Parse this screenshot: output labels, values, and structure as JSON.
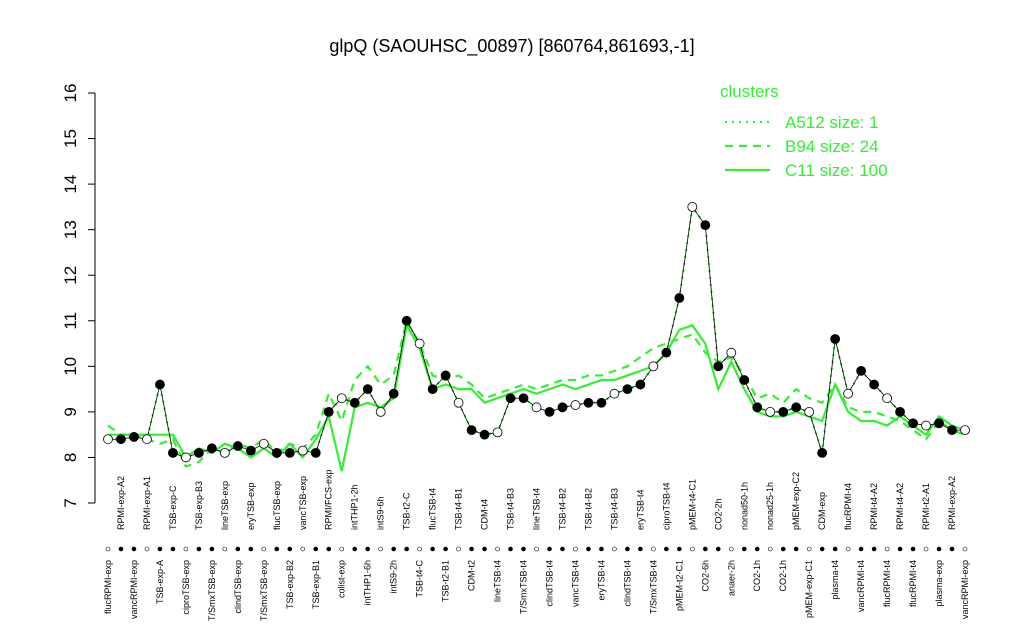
{
  "chart_data": {
    "type": "line",
    "title": "glpQ (SAOUHSC_00897) [860764,861693,-1]",
    "legend_title": "clusters",
    "legend_position": "top-right",
    "categories": [
      "flucRPMI-exp",
      "RPMI-exp-A2",
      "vancRPMI-exp",
      "RPMI-exp-A1",
      "TSB-exp-A",
      "TSB-exp-C",
      "ciproTSB-exp",
      "TSB-exp-B3",
      "T/SmxTSB-exp",
      "lineTSB-exp",
      "clindTSB-exp",
      "eryTSB-exp",
      "T/SmxTSB-exp",
      "flucTSB-exp",
      "TSB-exp-B2",
      "vancTSB-exp",
      "TSB-exp-B1",
      "RPMI/FCS-exp",
      "colist-exp",
      "intTHP1-2h",
      "intTHP1-6h",
      "intS9-6h",
      "intS9-2h",
      "TSB-t2-C",
      "TSB-t4-C",
      "flucTSB-t4",
      "TSB-t2-B1",
      "TSB-t4-B1",
      "CDM-t2",
      "CDM-t4",
      "lineTSB-t4",
      "TSB-t4-B3",
      "T/SmxTSB-t4",
      "lineTSB-t4",
      "clindTSB-t4",
      "TSB-t4-B2",
      "vancTSB-t4",
      "TSB-t4-B2",
      "eryTSB-t4",
      "TSB-t4-B3",
      "clindTSB-t4",
      "eryTSB-t4",
      "T/SmxTSB-t4",
      "ciproTSB-t4",
      "pMEM-t2-C1",
      "pMEM-t4-C1",
      "CO2-6h",
      "CO2-2h",
      "anaer-2h",
      "nonad50-1h",
      "CO2-1h",
      "nonad25-1h",
      "CO2-1h",
      "pMEM-exp-C2",
      "pMEM-exp-C1",
      "CDM-exp",
      "plasma-t4",
      "flucRPMI-t4",
      "vancRPMI-t4",
      "RPMI-t4-A2",
      "flucRPMI-t4",
      "RPMI-t4-A2",
      "flucRPMI-t4",
      "RPMI-t2-A1",
      "plasma-exp",
      "RPMI-exp-A2",
      "vancRPMI-exp"
    ],
    "series": [
      {
        "name": "A512 size: 1",
        "color": "#33ee33",
        "style": "dotted",
        "points": true,
        "values": [
          8.4,
          8.4,
          8.45,
          8.4,
          9.6,
          8.1,
          8.0,
          8.1,
          8.2,
          8.1,
          8.25,
          8.15,
          8.3,
          8.1,
          8.1,
          8.15,
          8.1,
          9.0,
          9.3,
          9.2,
          9.5,
          9.0,
          9.4,
          11.0,
          10.5,
          9.5,
          9.8,
          9.2,
          8.6,
          8.5,
          8.55,
          9.3,
          9.3,
          9.1,
          9.0,
          9.1,
          9.15,
          9.2,
          9.2,
          9.4,
          9.5,
          9.6,
          10.0,
          10.3,
          11.5,
          13.5,
          13.1,
          10.0,
          10.3,
          9.7,
          9.1,
          9.0,
          9.0,
          9.1,
          9.0,
          8.1,
          10.6,
          9.4,
          9.9,
          9.6,
          9.3,
          9.0,
          8.75,
          8.7,
          8.75,
          8.6,
          8.6
        ]
      },
      {
        "name": "B94 size: 24",
        "color": "#33ee33",
        "style": "dashed",
        "values": [
          8.7,
          8.5,
          8.5,
          8.4,
          8.3,
          8.4,
          7.8,
          7.9,
          8.2,
          8.1,
          8.3,
          8.2,
          8.4,
          8.1,
          8.3,
          8.2,
          8.5,
          9.4,
          8.8,
          9.7,
          10.0,
          9.6,
          9.8,
          11.0,
          10.5,
          9.8,
          9.7,
          9.8,
          9.6,
          9.3,
          9.4,
          9.5,
          9.6,
          9.5,
          9.6,
          9.7,
          9.7,
          9.8,
          9.8,
          9.9,
          10.0,
          10.2,
          10.4,
          10.5,
          10.6,
          10.7,
          10.3,
          10.1,
          10.2,
          9.8,
          9.3,
          9.4,
          9.2,
          9.5,
          9.3,
          9.2,
          9.6,
          9.1,
          9.0,
          9.0,
          8.9,
          8.8,
          8.6,
          8.4,
          8.8,
          8.6,
          8.5
        ]
      },
      {
        "name": "C11 size: 100",
        "color": "#33ee33",
        "style": "solid",
        "values": [
          8.5,
          8.5,
          8.5,
          8.5,
          8.5,
          8.5,
          8.0,
          8.2,
          8.1,
          8.3,
          8.2,
          8.0,
          8.2,
          8.0,
          8.3,
          8.0,
          8.4,
          8.9,
          7.7,
          9.1,
          9.2,
          9.1,
          9.3,
          10.9,
          10.4,
          9.5,
          9.6,
          9.5,
          9.5,
          9.2,
          9.3,
          9.4,
          9.5,
          9.4,
          9.5,
          9.6,
          9.5,
          9.6,
          9.7,
          9.7,
          9.8,
          9.9,
          10.0,
          10.3,
          10.8,
          10.9,
          10.5,
          9.5,
          10.1,
          9.5,
          9.0,
          8.9,
          8.9,
          9.0,
          8.9,
          8.8,
          9.6,
          9.0,
          8.8,
          8.8,
          8.7,
          8.9,
          8.7,
          8.5,
          8.9,
          8.7,
          8.6
        ]
      }
    ],
    "ylim": [
      7,
      16
    ],
    "yticks": [
      7,
      8,
      9,
      10,
      11,
      12,
      13,
      14,
      15,
      16
    ],
    "grid": false
  }
}
